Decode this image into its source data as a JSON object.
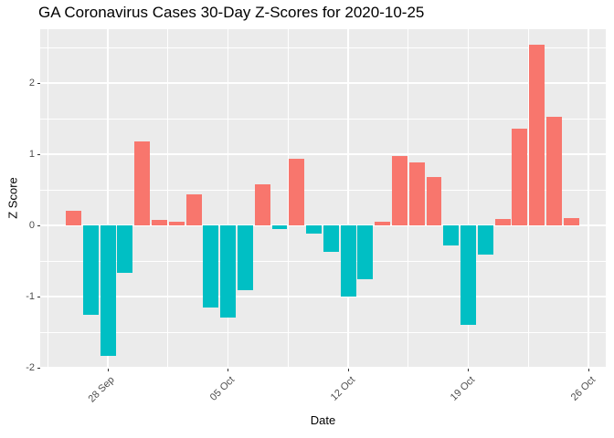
{
  "title": "GA Coronavirus Cases 30-Day Z-Scores for 2020-10-25",
  "chart_data": {
    "type": "bar",
    "title": "GA Coronavirus Cases 30-Day Z-Scores for 2020-10-25",
    "xlabel": "Date",
    "ylabel": "Z Score",
    "x": [
      "2020-09-26",
      "2020-09-27",
      "2020-09-28",
      "2020-09-29",
      "2020-09-30",
      "2020-10-01",
      "2020-10-02",
      "2020-10-03",
      "2020-10-04",
      "2020-10-05",
      "2020-10-06",
      "2020-10-07",
      "2020-10-08",
      "2020-10-09",
      "2020-10-10",
      "2020-10-11",
      "2020-10-12",
      "2020-10-13",
      "2020-10-14",
      "2020-10-15",
      "2020-10-16",
      "2020-10-17",
      "2020-10-18",
      "2020-10-19",
      "2020-10-20",
      "2020-10-21",
      "2020-10-22",
      "2020-10-23",
      "2020-10-24",
      "2020-10-25"
    ],
    "values": [
      0.2,
      -1.26,
      -1.83,
      -0.67,
      1.18,
      0.08,
      0.05,
      0.44,
      -1.16,
      -1.3,
      -0.91,
      0.58,
      -0.05,
      0.93,
      -0.12,
      -0.37,
      -1.0,
      -0.75,
      0.05,
      0.97,
      0.88,
      0.68,
      -0.28,
      -1.4,
      -0.41,
      0.09,
      1.36,
      2.54,
      1.53,
      0.1
    ],
    "positive_color": "#F8766D",
    "negative_color": "#00BFC4",
    "x_tick_labels": [
      "28 Sep",
      "05 Oct",
      "12 Oct",
      "19 Oct",
      "26 Oct"
    ],
    "x_tick_day_index": [
      2,
      9,
      16,
      23,
      30
    ],
    "y_tick_labels": [
      "2",
      "1",
      "0",
      "-1",
      "-2"
    ],
    "y_ticks": [
      2,
      1,
      0,
      -1,
      -2
    ],
    "y_minor_ticks": [
      2.5,
      1.5,
      0.5,
      -0.5,
      -1.5
    ],
    "ylim": [
      -2.05,
      2.76
    ],
    "grid": true,
    "legend_position": "none",
    "panel_background": "#EBEBEB",
    "grid_color": "#FFFFFF"
  }
}
